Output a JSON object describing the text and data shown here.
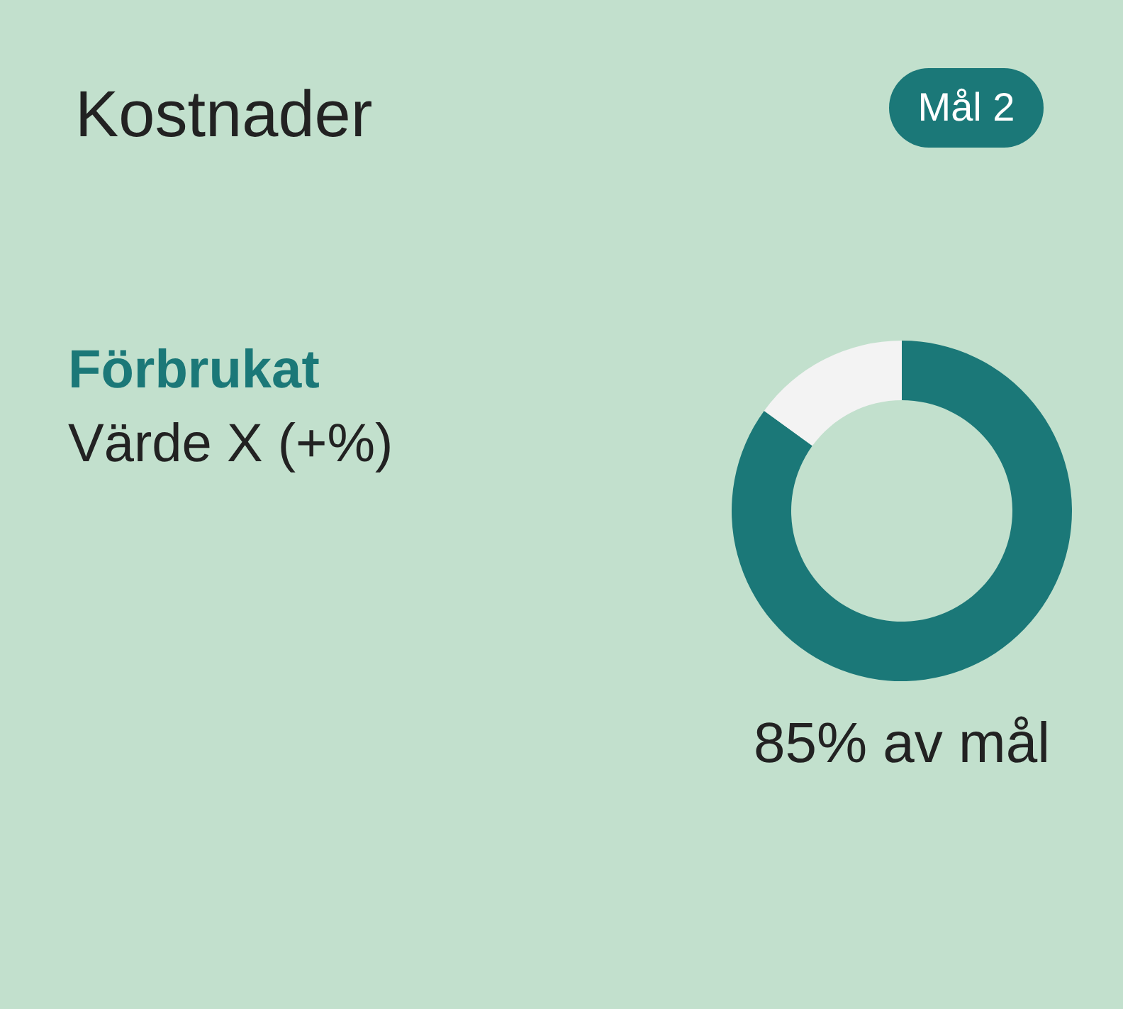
{
  "chart_data": {
    "type": "donut",
    "title": "Kostnader",
    "categories": [
      null,
      null
    ],
    "values": [
      85,
      15
    ],
    "colors": [
      "#1b7878",
      "#f3f3f3"
    ],
    "annotations": [
      "Mål 2",
      "Förbrukat",
      "Värde X (+%)",
      "85% av mål"
    ]
  }
}
